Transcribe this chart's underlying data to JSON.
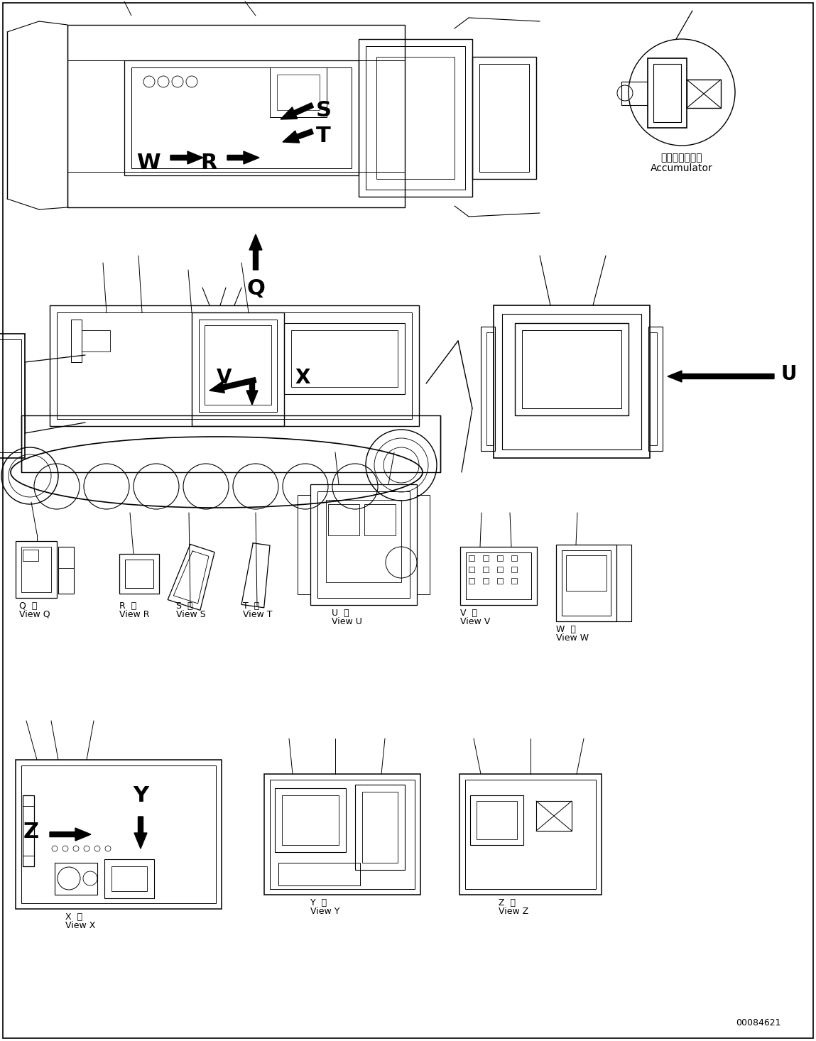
{
  "background_color": "#ffffff",
  "line_color": "#000000",
  "part_number": "00084621",
  "accumulator_label_jp": "アキュムレータ",
  "accumulator_label_en": "Accumulator",
  "figwidth": 11.49,
  "figheight": 14.66,
  "dpi": 100,
  "view_labels": [
    {
      "letter": "Q",
      "kanji": "視",
      "en": "View Q"
    },
    {
      "letter": "R",
      "kanji": "視",
      "en": "View R"
    },
    {
      "letter": "S",
      "kanji": "視",
      "en": "View S"
    },
    {
      "letter": "T",
      "kanji": "視",
      "en": "View T"
    },
    {
      "letter": "U",
      "kanji": "視",
      "en": "View U"
    },
    {
      "letter": "V",
      "kanji": "視",
      "en": "View V"
    },
    {
      "letter": "W",
      "kanji": "視",
      "en": "View W"
    },
    {
      "letter": "X",
      "kanji": "視",
      "en": "View X"
    },
    {
      "letter": "Y",
      "kanji": "視",
      "en": "View Y"
    },
    {
      "letter": "Z",
      "kanji": "視",
      "en": "View Z"
    }
  ]
}
